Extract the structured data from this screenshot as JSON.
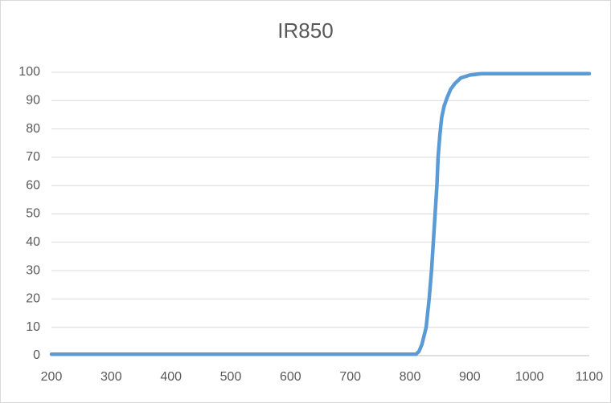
{
  "chart_data": {
    "type": "line",
    "title": "IR850",
    "x": [
      200,
      810,
      815,
      820,
      827,
      832,
      836,
      839,
      842,
      845,
      847,
      850,
      853,
      857,
      862,
      868,
      875,
      885,
      900,
      920,
      1100
    ],
    "series": [
      {
        "name": "IR850",
        "color": "#5b9bd5",
        "values": [
          0.5,
          0.5,
          1.5,
          4,
          10,
          20,
          30,
          40,
          50,
          60,
          70,
          78,
          84,
          88,
          91,
          94,
          96,
          98,
          99,
          99.5,
          99.5
        ]
      }
    ],
    "xlim": [
      200,
      1100
    ],
    "xticks": [
      200,
      300,
      400,
      500,
      600,
      700,
      800,
      900,
      1000,
      1100
    ],
    "ylim": [
      0,
      100
    ],
    "yticks": [
      0,
      10,
      20,
      30,
      40,
      50,
      60,
      70,
      80,
      90,
      100
    ],
    "grid": true
  }
}
